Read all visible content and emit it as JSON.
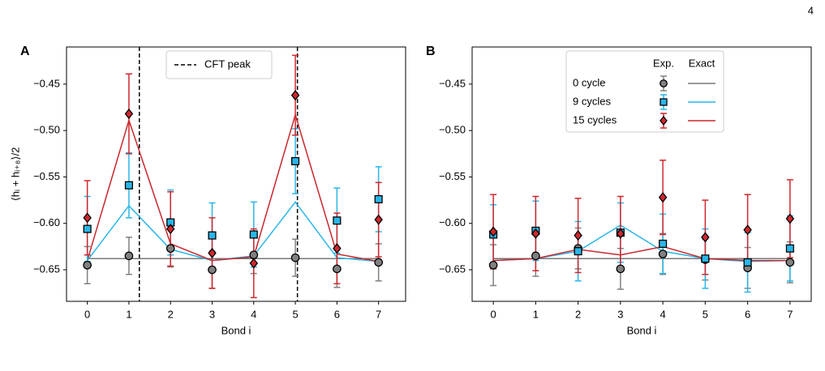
{
  "page_number": "4",
  "chart_data": [
    {
      "type": "scatter",
      "label": "A",
      "x_label": "Bond i",
      "y_label": "⟨hᵢ + hᵢ₊₈⟩/2",
      "x": [
        0,
        1,
        2,
        3,
        4,
        5,
        6,
        7
      ],
      "xlim": [
        -0.5,
        7.65
      ],
      "ylim": [
        -0.684,
        -0.41
      ],
      "xticks": [
        0,
        1,
        2,
        3,
        4,
        5,
        6,
        7
      ],
      "yticks": [
        {
          "value": -0.65,
          "label": "−0.65"
        },
        {
          "value": -0.6,
          "label": "−0.60"
        },
        {
          "value": -0.55,
          "label": "−0.55"
        },
        {
          "value": -0.5,
          "label": "−0.50"
        },
        {
          "value": -0.45,
          "label": "−0.45"
        }
      ],
      "vlines": {
        "name": "CFT peak",
        "x": [
          1.25,
          5.05
        ],
        "color": "#000000"
      },
      "series": [
        {
          "color": "#808080",
          "line_color": "#777777",
          "marker": "circle",
          "values": [
            -0.645,
            -0.635,
            -0.627,
            -0.65,
            -0.634,
            -0.637,
            -0.649,
            -0.642
          ],
          "errors": [
            0.02,
            0.02,
            0.02,
            0.02,
            0.02,
            0.02,
            0.02,
            0.02
          ],
          "exact": [
            -0.638,
            -0.638,
            -0.638,
            -0.638,
            -0.638,
            -0.638,
            -0.638,
            -0.638
          ]
        },
        {
          "color": "#29b6e8",
          "line_color": "#29b6e8",
          "marker": "square",
          "values": [
            -0.606,
            -0.559,
            -0.599,
            -0.613,
            -0.612,
            -0.533,
            -0.597,
            -0.574
          ],
          "errors": [
            0.035,
            0.035,
            0.035,
            0.035,
            0.035,
            0.035,
            0.035,
            0.035
          ],
          "exact": [
            -0.64,
            -0.581,
            -0.628,
            -0.64,
            -0.635,
            -0.577,
            -0.637,
            -0.641
          ]
        },
        {
          "color": "#d0282e",
          "line_color": "#c8282d",
          "marker": "diamond",
          "values": [
            -0.594,
            -0.482,
            -0.606,
            -0.632,
            -0.643,
            -0.462,
            -0.627,
            -0.596
          ],
          "errors": [
            0.04,
            0.043,
            0.04,
            0.038,
            0.037,
            0.043,
            0.038,
            0.04
          ],
          "exact": [
            -0.64,
            -0.489,
            -0.622,
            -0.64,
            -0.636,
            -0.483,
            -0.633,
            -0.641
          ]
        }
      ]
    },
    {
      "type": "scatter",
      "label": "B",
      "x_label": "Bond i",
      "x": [
        0,
        1,
        2,
        3,
        4,
        5,
        6,
        7
      ],
      "xlim": [
        -0.5,
        7.5
      ],
      "ylim": [
        -0.684,
        -0.41
      ],
      "xticks": [
        0,
        1,
        2,
        3,
        4,
        5,
        6,
        7
      ],
      "yticks": [
        {
          "value": -0.65,
          "label": "−0.65"
        },
        {
          "value": -0.6,
          "label": "−0.60"
        },
        {
          "value": -0.55,
          "label": "−0.55"
        },
        {
          "value": -0.5,
          "label": "−0.50"
        },
        {
          "value": -0.45,
          "label": "−0.45"
        }
      ],
      "legend_headers": [
        "Exp.",
        "Exact"
      ],
      "series": [
        {
          "name": "0 cycle",
          "color": "#808080",
          "line_color": "#777777",
          "marker": "circle",
          "values": [
            -0.645,
            -0.635,
            -0.627,
            -0.649,
            -0.633,
            -0.639,
            -0.648,
            -0.642
          ],
          "errors": [
            0.022,
            0.022,
            0.022,
            0.022,
            0.022,
            0.022,
            0.022,
            0.022
          ],
          "exact": [
            -0.638,
            -0.638,
            -0.638,
            -0.638,
            -0.638,
            -0.638,
            -0.638,
            -0.638
          ]
        },
        {
          "name": "9 cycles",
          "color": "#29b6e8",
          "line_color": "#29b6e8",
          "marker": "square",
          "values": [
            -0.612,
            -0.608,
            -0.63,
            -0.61,
            -0.622,
            -0.638,
            -0.642,
            -0.627
          ],
          "errors": [
            0.032,
            0.032,
            0.032,
            0.032,
            0.032,
            0.032,
            0.032,
            0.035
          ],
          "exact": [
            -0.64,
            -0.638,
            -0.63,
            -0.602,
            -0.63,
            -0.638,
            -0.641,
            -0.64
          ]
        },
        {
          "name": "15 cycles",
          "color": "#d0282e",
          "line_color": "#c8282d",
          "marker": "diamond",
          "values": [
            -0.609,
            -0.611,
            -0.613,
            -0.611,
            -0.572,
            -0.615,
            -0.607,
            -0.595
          ],
          "errors": [
            0.04,
            0.04,
            0.04,
            0.04,
            0.04,
            0.04,
            0.038,
            0.042
          ],
          "exact": [
            -0.64,
            -0.638,
            -0.628,
            -0.634,
            -0.625,
            -0.638,
            -0.64,
            -0.64
          ]
        }
      ]
    }
  ]
}
